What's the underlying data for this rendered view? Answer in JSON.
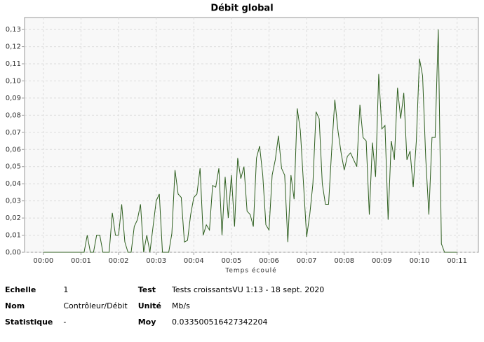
{
  "chart_data": {
    "type": "line",
    "title": "Débit global",
    "x_label": "Temps écoulé",
    "color": "#2d5e1e",
    "grid": true,
    "x": [
      0,
      60,
      65,
      70,
      75,
      80,
      85,
      90,
      95,
      100,
      105,
      110,
      115,
      120,
      125,
      130,
      135,
      140,
      145,
      150,
      155,
      160,
      165,
      170,
      175,
      180,
      185,
      190,
      195,
      200,
      205,
      210,
      215,
      220,
      225,
      230,
      235,
      240,
      245,
      250,
      255,
      260,
      265,
      270,
      275,
      280,
      285,
      290,
      295,
      300,
      305,
      310,
      315,
      320,
      325,
      330,
      335,
      340,
      345,
      350,
      355,
      360,
      365,
      370,
      375,
      380,
      385,
      390,
      395,
      400,
      405,
      410,
      415,
      420,
      425,
      430,
      435,
      440,
      445,
      450,
      455,
      460,
      465,
      470,
      475,
      480,
      485,
      490,
      495,
      500,
      505,
      510,
      515,
      520,
      525,
      530,
      535,
      540,
      545,
      550,
      555,
      560,
      565,
      570,
      575,
      580,
      585,
      590,
      595,
      600,
      605,
      610,
      615,
      620,
      625,
      630,
      635,
      640,
      645,
      660
    ],
    "values": [
      0,
      0,
      0,
      0.01,
      0,
      0,
      0.01,
      0.01,
      0,
      0,
      0,
      0.023,
      0.01,
      0.01,
      0.028,
      0.006,
      0,
      0,
      0.015,
      0.019,
      0.028,
      0,
      0.01,
      0,
      0.015,
      0.03,
      0.034,
      0,
      0,
      0,
      0.011,
      0.048,
      0.034,
      0.032,
      0.006,
      0.007,
      0.022,
      0.032,
      0.034,
      0.049,
      0.01,
      0.016,
      0.013,
      0.039,
      0.038,
      0.049,
      0.01,
      0.044,
      0.02,
      0.045,
      0.015,
      0.055,
      0.043,
      0.05,
      0.024,
      0.022,
      0.015,
      0.055,
      0.062,
      0.045,
      0.016,
      0.013,
      0.045,
      0.054,
      0.068,
      0.049,
      0.045,
      0.006,
      0.045,
      0.031,
      0.084,
      0.071,
      0.04,
      0.009,
      0.022,
      0.04,
      0.082,
      0.078,
      0.04,
      0.028,
      0.028,
      0.06,
      0.089,
      0.071,
      0.058,
      0.048,
      0.056,
      0.058,
      0.054,
      0.05,
      0.086,
      0.067,
      0.065,
      0.022,
      0.064,
      0.044,
      0.104,
      0.072,
      0.074,
      0.019,
      0.065,
      0.054,
      0.096,
      0.078,
      0.093,
      0.054,
      0.059,
      0.038,
      0.065,
      0.113,
      0.103,
      0.055,
      0.022,
      0.067,
      0.067,
      0.13,
      0.005,
      0,
      0,
      0
    ],
    "xlim": [
      -30,
      694
    ],
    "ylim": [
      0,
      0.137
    ],
    "xticks": [
      {
        "value": 0,
        "label": "00:00"
      },
      {
        "value": 60,
        "label": "00:01"
      },
      {
        "value": 120,
        "label": "00:02"
      },
      {
        "value": 180,
        "label": "00:03"
      },
      {
        "value": 240,
        "label": "00:04"
      },
      {
        "value": 300,
        "label": "00:05"
      },
      {
        "value": 360,
        "label": "00:06"
      },
      {
        "value": 420,
        "label": "00:07"
      },
      {
        "value": 480,
        "label": "00:08"
      },
      {
        "value": 540,
        "label": "00:09"
      },
      {
        "value": 600,
        "label": "00:10"
      },
      {
        "value": 660,
        "label": "00:11"
      }
    ],
    "yticks": [
      {
        "value": 0,
        "label": "0,00"
      },
      {
        "value": 0.01,
        "label": "0,01"
      },
      {
        "value": 0.02,
        "label": "0,02"
      },
      {
        "value": 0.03,
        "label": "0,03"
      },
      {
        "value": 0.04,
        "label": "0,04"
      },
      {
        "value": 0.05,
        "label": "0,05"
      },
      {
        "value": 0.06,
        "label": "0,06"
      },
      {
        "value": 0.07,
        "label": "0,07"
      },
      {
        "value": 0.08,
        "label": "0,08"
      },
      {
        "value": 0.09,
        "label": "0,09"
      },
      {
        "value": 0.1,
        "label": "0,10"
      },
      {
        "value": 0.11,
        "label": "0,11"
      },
      {
        "value": 0.12,
        "label": "0,12"
      },
      {
        "value": 0.13,
        "label": "0,13"
      }
    ]
  },
  "info": {
    "rows": [
      [
        "Echelle",
        "1",
        "Test",
        "Tests croissantsVU 1:13 - 18 sept. 2020"
      ],
      [
        "Nom",
        "Contrôleur/Débit",
        "Unité",
        "Mb/s"
      ],
      [
        "Statistique",
        "-",
        "Moy",
        "0.033500516427342204"
      ]
    ]
  }
}
